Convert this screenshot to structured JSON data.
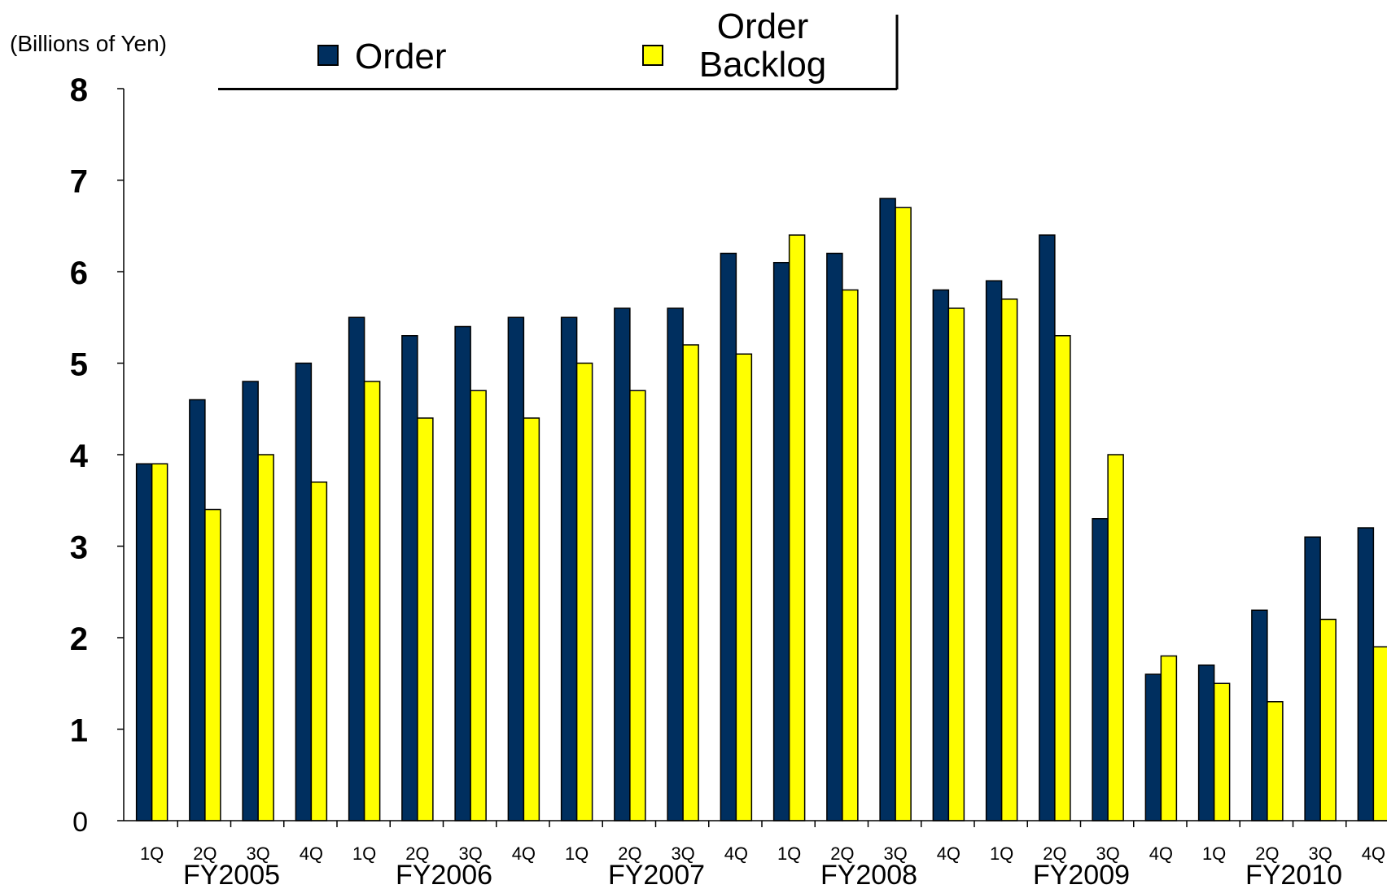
{
  "chart_data": {
    "type": "bar",
    "ylabel": "(Billions of Yen)",
    "ylim": [
      0,
      8
    ],
    "yticks": [
      "0",
      "1",
      "2",
      "3",
      "4",
      "5",
      "6",
      "7",
      "8"
    ],
    "categories": [
      "1Q",
      "2Q",
      "3Q",
      "4Q",
      "1Q",
      "2Q",
      "3Q",
      "4Q",
      "1Q",
      "2Q",
      "3Q",
      "4Q",
      "1Q",
      "2Q",
      "3Q",
      "4Q",
      "1Q",
      "2Q",
      "3Q",
      "4Q",
      "1Q",
      "2Q",
      "3Q",
      "4Q"
    ],
    "groups": [
      "FY2005",
      "FY2006",
      "FY2007",
      "FY2008",
      "FY2009",
      "FY2010"
    ],
    "series": [
      {
        "name": "Order",
        "color": "#002F5F",
        "values": [
          3.9,
          4.6,
          4.8,
          5.0,
          5.5,
          5.3,
          5.4,
          5.5,
          5.5,
          5.6,
          5.6,
          6.2,
          6.1,
          6.2,
          6.8,
          5.8,
          5.9,
          6.4,
          3.3,
          1.6,
          1.7,
          2.3,
          3.1,
          3.2
        ]
      },
      {
        "name": "Order Backlog",
        "legend_lines": [
          "Order",
          "Backlog"
        ],
        "color": "#FFFF00",
        "values": [
          3.9,
          3.4,
          4.0,
          3.7,
          4.8,
          4.4,
          4.7,
          4.4,
          5.0,
          4.7,
          5.2,
          5.1,
          6.4,
          5.8,
          6.7,
          5.6,
          5.7,
          5.3,
          4.0,
          1.8,
          1.5,
          1.3,
          2.2,
          1.9
        ]
      }
    ],
    "legend": "top"
  }
}
